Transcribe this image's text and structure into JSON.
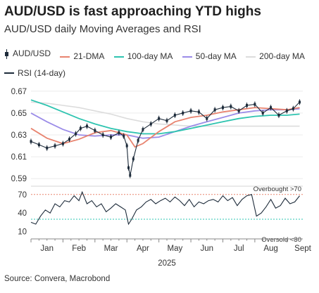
{
  "title": "AUD/USD is fast approaching YTD highs",
  "subtitle": "AUD/USD daily Moving Averages and RSI",
  "source": "Source: Convera, Macrobond",
  "legend": [
    {
      "label": "AUD/USD",
      "color": "#1d2b3a",
      "kind": "candle"
    },
    {
      "label": "21-DMA",
      "color": "#e8836f",
      "kind": "line"
    },
    {
      "label": "100-day MA",
      "color": "#2ec4b0",
      "kind": "line"
    },
    {
      "label": "50-day MA",
      "color": "#9b8ce8",
      "kind": "line"
    },
    {
      "label": "200-day MA",
      "color": "#dcdcdc",
      "kind": "line"
    },
    {
      "label": "RSI (14-day)",
      "color": "#1d2b3a",
      "kind": "line"
    }
  ],
  "chart_data": [
    {
      "type": "line",
      "panel": "price",
      "ylim": [
        0.585,
        0.675
      ],
      "yticks": [
        0.59,
        0.61,
        0.63,
        0.65,
        0.67
      ],
      "ytick_labels": [
        "0.59",
        "0.61",
        "0.63",
        "0.65",
        "0.67"
      ],
      "x_months": [
        "Jan",
        "Feb",
        "Mar",
        "Apr",
        "May",
        "Jun",
        "Jul",
        "Aug",
        "Sept"
      ],
      "x_year": "2025",
      "xlim": [
        0,
        8.5
      ],
      "series": [
        {
          "name": "AUD/USD",
          "color": "#1d2b3a",
          "x": [
            0,
            0.25,
            0.5,
            0.75,
            1.0,
            1.2,
            1.4,
            1.55,
            1.75,
            2.0,
            2.25,
            2.5,
            2.75,
            2.9,
            3.0,
            3.05,
            3.1,
            3.2,
            3.35,
            3.5,
            3.75,
            4.0,
            4.25,
            4.5,
            4.75,
            5.0,
            5.25,
            5.5,
            5.75,
            6.0,
            6.25,
            6.5,
            6.75,
            7.0,
            7.25,
            7.5,
            7.75,
            8.0,
            8.2,
            8.4
          ],
          "y": [
            0.624,
            0.621,
            0.618,
            0.62,
            0.622,
            0.626,
            0.631,
            0.636,
            0.638,
            0.634,
            0.63,
            0.628,
            0.632,
            0.629,
            0.62,
            0.6,
            0.593,
            0.608,
            0.625,
            0.635,
            0.64,
            0.645,
            0.643,
            0.648,
            0.65,
            0.652,
            0.651,
            0.645,
            0.653,
            0.655,
            0.656,
            0.652,
            0.657,
            0.658,
            0.65,
            0.655,
            0.648,
            0.652,
            0.654,
            0.66
          ]
        },
        {
          "name": "21-DMA",
          "color": "#e8836f",
          "x": [
            0,
            0.5,
            1.0,
            1.5,
            2.0,
            2.5,
            3.0,
            3.25,
            3.5,
            4.0,
            4.5,
            5.0,
            5.5,
            6.0,
            6.5,
            7.0,
            7.5,
            8.0,
            8.4
          ],
          "y": [
            0.636,
            0.627,
            0.622,
            0.626,
            0.632,
            0.634,
            0.63,
            0.619,
            0.622,
            0.633,
            0.642,
            0.646,
            0.648,
            0.651,
            0.653,
            0.655,
            0.654,
            0.653,
            0.655
          ]
        },
        {
          "name": "50-day MA",
          "color": "#9b8ce8",
          "x": [
            0,
            0.5,
            1.0,
            1.5,
            2.0,
            2.5,
            3.0,
            3.5,
            4.0,
            4.5,
            5.0,
            5.5,
            6.0,
            6.5,
            7.0,
            7.5,
            8.0,
            8.4
          ],
          "y": [
            0.65,
            0.642,
            0.635,
            0.63,
            0.629,
            0.63,
            0.63,
            0.627,
            0.628,
            0.633,
            0.638,
            0.642,
            0.646,
            0.65,
            0.652,
            0.653,
            0.653,
            0.654
          ]
        },
        {
          "name": "100-day MA",
          "color": "#2ec4b0",
          "x": [
            0,
            0.5,
            1.0,
            1.5,
            2.0,
            2.5,
            3.0,
            3.5,
            4.0,
            4.5,
            5.0,
            5.5,
            6.0,
            6.5,
            7.0,
            7.5,
            8.0,
            8.4
          ],
          "y": [
            0.662,
            0.657,
            0.651,
            0.645,
            0.64,
            0.636,
            0.633,
            0.631,
            0.631,
            0.633,
            0.636,
            0.639,
            0.642,
            0.645,
            0.647,
            0.648,
            0.648,
            0.649
          ]
        },
        {
          "name": "200-day MA",
          "color": "#dcdcdc",
          "x": [
            0,
            0.5,
            1.0,
            1.5,
            2.0,
            2.5,
            3.0,
            3.5,
            4.0,
            4.5,
            5.0,
            5.5,
            6.0,
            6.5,
            7.0,
            7.5,
            8.0,
            8.4
          ],
          "y": [
            0.66,
            0.659,
            0.657,
            0.655,
            0.652,
            0.649,
            0.645,
            0.642,
            0.64,
            0.639,
            0.638,
            0.638,
            0.638,
            0.638,
            0.638,
            0.638,
            0.638,
            0.638
          ]
        }
      ]
    },
    {
      "type": "line",
      "panel": "rsi",
      "ylim": [
        5,
        80
      ],
      "yticks": [
        10,
        40,
        70
      ],
      "ytick_labels": [
        "10",
        "40",
        "70"
      ],
      "xlim": [
        0,
        8.5
      ],
      "overbought": 70,
      "oversold": 30,
      "overbought_label": "Overbought >70",
      "oversold_label": "Oversold <30",
      "series": [
        {
          "name": "RSI (14-day)",
          "color": "#1d2b3a",
          "x": [
            0,
            0.15,
            0.3,
            0.45,
            0.6,
            0.75,
            0.9,
            1.05,
            1.2,
            1.35,
            1.5,
            1.6,
            1.75,
            1.9,
            2.05,
            2.2,
            2.35,
            2.5,
            2.65,
            2.8,
            2.95,
            3.05,
            3.15,
            3.3,
            3.45,
            3.6,
            3.75,
            3.9,
            4.05,
            4.2,
            4.35,
            4.5,
            4.65,
            4.8,
            4.95,
            5.1,
            5.25,
            5.4,
            5.55,
            5.7,
            5.85,
            6.0,
            6.15,
            6.3,
            6.45,
            6.6,
            6.75,
            6.9,
            7.05,
            7.2,
            7.35,
            7.5,
            7.65,
            7.8,
            7.95,
            8.1,
            8.25,
            8.4
          ],
          "y": [
            25,
            22,
            35,
            45,
            40,
            55,
            50,
            60,
            58,
            68,
            60,
            74,
            55,
            60,
            50,
            55,
            42,
            48,
            55,
            50,
            45,
            22,
            30,
            45,
            50,
            58,
            62,
            55,
            60,
            64,
            58,
            66,
            60,
            52,
            62,
            50,
            58,
            55,
            60,
            62,
            58,
            68,
            60,
            65,
            52,
            62,
            68,
            70,
            35,
            40,
            50,
            62,
            48,
            52,
            64,
            55,
            58,
            68
          ]
        }
      ]
    }
  ]
}
